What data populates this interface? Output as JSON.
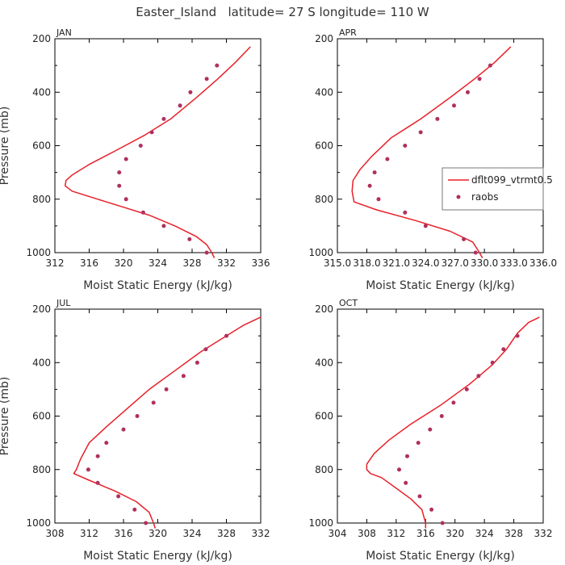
{
  "title": "Easter_Island   latitude= 27 S longitude= 110 W",
  "legend": {
    "model_label": "dflt099_vtrmt0.5",
    "obs_label": "raobs",
    "placement": "right side of APR panel"
  },
  "colors": {
    "model": "#e8202a",
    "obs": "#b03060",
    "axis": "#000000"
  },
  "chart_data": [
    {
      "type": "line",
      "panel": "JAN",
      "title": "JAN",
      "xlabel": "Moist Static Energy (kJ/kg)",
      "ylabel": "Pressure (mb)",
      "xlim": [
        312,
        336
      ],
      "ylim": [
        1000,
        200
      ],
      "xticks": [
        "312",
        "316",
        "320",
        "324",
        "328",
        "332",
        "336"
      ],
      "yticks": [
        "200",
        "400",
        "600",
        "800",
        "1000"
      ],
      "series": [
        {
          "name": "dflt099_vtrmt0.5",
          "kind": "line",
          "points": [
            [
              334.8,
              230
            ],
            [
              333,
              290
            ],
            [
              331,
              350
            ],
            [
              328.5,
              420
            ],
            [
              325.5,
              500
            ],
            [
              322.5,
              560
            ],
            [
              319,
              620
            ],
            [
              316,
              670
            ],
            [
              314,
              710
            ],
            [
              313.3,
              730
            ],
            [
              313.2,
              750
            ],
            [
              314,
              770
            ],
            [
              317,
              800
            ],
            [
              320,
              830
            ],
            [
              323,
              860
            ],
            [
              326,
              900
            ],
            [
              328.5,
              940
            ],
            [
              329.7,
              970
            ],
            [
              330.3,
              1000
            ],
            [
              330.6,
              1020
            ]
          ]
        },
        {
          "name": "raobs",
          "kind": "scatter",
          "points": [
            [
              330.9,
              300
            ],
            [
              329.7,
              350
            ],
            [
              327.8,
              400
            ],
            [
              326.6,
              450
            ],
            [
              324.7,
              500
            ],
            [
              323.3,
              550
            ],
            [
              322,
              600
            ],
            [
              320.3,
              650
            ],
            [
              319.5,
              700
            ],
            [
              319.5,
              750
            ],
            [
              320.3,
              800
            ],
            [
              322.3,
              850
            ],
            [
              324.7,
              900
            ],
            [
              327.7,
              950
            ],
            [
              329.7,
              1000
            ]
          ]
        }
      ]
    },
    {
      "type": "line",
      "panel": "APR",
      "title": "APR",
      "xlabel": "Moist Static Energy (kJ/kg)",
      "ylabel": "",
      "xlim": [
        315,
        336
      ],
      "ylim": [
        1000,
        200
      ],
      "xticks": [
        "315.0",
        "318.0",
        "321.0",
        "324.0",
        "327.0",
        "330.0",
        "333.0",
        "336.0"
      ],
      "yticks": [
        "200",
        "400",
        "600",
        "800",
        "1000"
      ],
      "series": [
        {
          "name": "dflt099_vtrmt0.5",
          "kind": "line",
          "points": [
            [
              332.7,
              230
            ],
            [
              331,
              290
            ],
            [
              329,
              350
            ],
            [
              326.5,
              420
            ],
            [
              323.5,
              500
            ],
            [
              320.5,
              570
            ],
            [
              318.5,
              640
            ],
            [
              317.3,
              690
            ],
            [
              316.6,
              730
            ],
            [
              316.5,
              770
            ],
            [
              316.7,
              810
            ],
            [
              319,
              840
            ],
            [
              323,
              880
            ],
            [
              326.5,
              920
            ],
            [
              328.8,
              960
            ],
            [
              329.5,
              1000
            ],
            [
              329.8,
              1020
            ]
          ]
        },
        {
          "name": "raobs",
          "kind": "scatter",
          "points": [
            [
              330.6,
              300
            ],
            [
              329.5,
              350
            ],
            [
              328.3,
              400
            ],
            [
              326.9,
              450
            ],
            [
              325.2,
              500
            ],
            [
              323.5,
              550
            ],
            [
              321.9,
              600
            ],
            [
              320.1,
              650
            ],
            [
              318.8,
              700
            ],
            [
              318.3,
              750
            ],
            [
              319.2,
              800
            ],
            [
              321.9,
              850
            ],
            [
              324,
              900
            ],
            [
              327.9,
              950
            ],
            [
              329.1,
              1000
            ]
          ]
        }
      ]
    },
    {
      "type": "line",
      "panel": "JUL",
      "title": "JUL",
      "xlabel": "Moist Static Energy (kJ/kg)",
      "ylabel": "Pressure (mb)",
      "xlim": [
        308,
        332
      ],
      "ylim": [
        1000,
        200
      ],
      "xticks": [
        "308",
        "312",
        "316",
        "320",
        "324",
        "328",
        "332"
      ],
      "yticks": [
        "200",
        "400",
        "600",
        "800",
        "1000"
      ],
      "series": [
        {
          "name": "dflt099_vtrmt0.5",
          "kind": "line",
          "points": [
            [
              332,
              230
            ],
            [
              330,
              260
            ],
            [
              328,
              300
            ],
            [
              325,
              360
            ],
            [
              322,
              430
            ],
            [
              319,
              500
            ],
            [
              316.5,
              570
            ],
            [
              314,
              640
            ],
            [
              312,
              700
            ],
            [
              311,
              760
            ],
            [
              310.5,
              800
            ],
            [
              310.2,
              815
            ],
            [
              312,
              840
            ],
            [
              315,
              880
            ],
            [
              317.5,
              920
            ],
            [
              319,
              960
            ],
            [
              319.5,
              1000
            ],
            [
              319.7,
              1020
            ]
          ]
        },
        {
          "name": "raobs",
          "kind": "scatter",
          "points": [
            [
              328,
              300
            ],
            [
              325.6,
              350
            ],
            [
              324.6,
              400
            ],
            [
              323,
              450
            ],
            [
              321,
              500
            ],
            [
              319.5,
              550
            ],
            [
              317.6,
              600
            ],
            [
              316,
              650
            ],
            [
              314,
              700
            ],
            [
              313,
              750
            ],
            [
              311.9,
              800
            ],
            [
              313,
              850
            ],
            [
              315.4,
              900
            ],
            [
              317.3,
              950
            ],
            [
              318.6,
              1000
            ]
          ]
        }
      ]
    },
    {
      "type": "line",
      "panel": "OCT",
      "title": "OCT",
      "xlabel": "Moist Static Energy (kJ/kg)",
      "ylabel": "",
      "xlim": [
        304,
        332
      ],
      "ylim": [
        1000,
        200
      ],
      "xticks": [
        "304",
        "308",
        "312",
        "316",
        "320",
        "324",
        "328",
        "332"
      ],
      "yticks": [
        "200",
        "400",
        "600",
        "800",
        "1000"
      ],
      "series": [
        {
          "name": "dflt099_vtrmt0.5",
          "kind": "line",
          "points": [
            [
              331.5,
              230
            ],
            [
              330,
              250
            ],
            [
              328.5,
              290
            ],
            [
              327,
              350
            ],
            [
              325,
              410
            ],
            [
              322,
              480
            ],
            [
              318,
              560
            ],
            [
              314,
              630
            ],
            [
              311,
              690
            ],
            [
              309,
              740
            ],
            [
              308,
              780
            ],
            [
              308,
              800
            ],
            [
              308.5,
              815
            ],
            [
              310,
              830
            ],
            [
              312,
              870
            ],
            [
              314,
              910
            ],
            [
              315.5,
              950
            ],
            [
              316,
              1000
            ],
            [
              316,
              1020
            ]
          ]
        },
        {
          "name": "raobs",
          "kind": "scatter",
          "points": [
            [
              328.5,
              300
            ],
            [
              326.6,
              350
            ],
            [
              325.1,
              400
            ],
            [
              323.2,
              450
            ],
            [
              321.6,
              500
            ],
            [
              319.8,
              550
            ],
            [
              318.2,
              600
            ],
            [
              316.6,
              650
            ],
            [
              315,
              700
            ],
            [
              313.5,
              750
            ],
            [
              312.4,
              800
            ],
            [
              313.3,
              850
            ],
            [
              315.2,
              900
            ],
            [
              316.8,
              950
            ],
            [
              318.3,
              1000
            ]
          ]
        }
      ]
    }
  ]
}
